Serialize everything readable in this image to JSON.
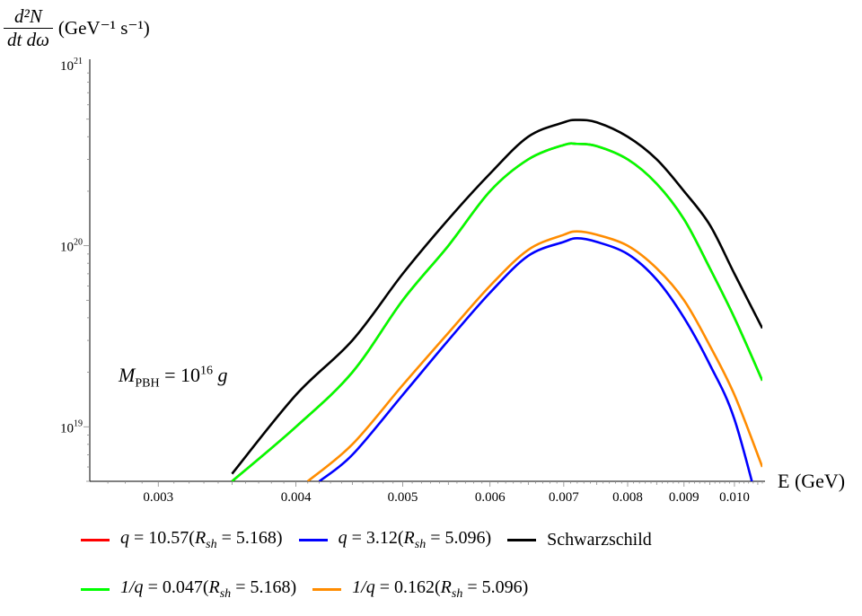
{
  "chart_data": {
    "type": "line",
    "title": "",
    "ylabel": "d²N/dt dω (GeV⁻¹ s⁻¹)",
    "ylabel_numerator": "d²N",
    "ylabel_denominator": "dt dω",
    "ylabel_units": "(GeV⁻¹ s⁻¹)",
    "xlabel": "E (GeV)",
    "xscale": "log",
    "yscale": "log",
    "xlim": [
      0.0026,
      0.0106
    ],
    "ylim": [
      5e+18,
      1e+21
    ],
    "xticks": [
      {
        "value": 0.003,
        "label": "0.003"
      },
      {
        "value": 0.004,
        "label": "0.004"
      },
      {
        "value": 0.005,
        "label": "0.005"
      },
      {
        "value": 0.006,
        "label": "0.006"
      },
      {
        "value": 0.007,
        "label": "0.007"
      },
      {
        "value": 0.008,
        "label": "0.008"
      },
      {
        "value": 0.009,
        "label": "0.009"
      },
      {
        "value": 0.01,
        "label": "0.010"
      }
    ],
    "yticks": [
      {
        "value": 1e+19,
        "label": "10",
        "exp": "19"
      },
      {
        "value": 1e+20,
        "label": "10",
        "exp": "20"
      },
      {
        "value": 1e+21,
        "label": "10",
        "exp": "21"
      }
    ],
    "annotation": "M_PBH = 10¹⁶ g",
    "annotation_main": "M",
    "annotation_sub": "PBH",
    "annotation_rest": " = 10",
    "annotation_exp": "16",
    "annotation_unit": " g",
    "series": [
      {
        "name": "q = 10.57(R_sh = 5.168)",
        "color": "#ff0000",
        "x": [
          0.0035,
          0.004,
          0.0045,
          0.005,
          0.0055,
          0.006,
          0.0065,
          0.007,
          0.0072,
          0.0075,
          0.008,
          0.0085,
          0.009,
          0.0095,
          0.01,
          0.0106
        ],
        "y": [
          5e+18,
          1e+19,
          2e+19,
          5e+19,
          1e+20,
          2e+20,
          3e+20,
          3.6e+20,
          3.65e+20,
          3.55e+20,
          3e+20,
          2.2e+20,
          1.4e+20,
          7.5e+19,
          4e+19,
          1.8e+19
        ]
      },
      {
        "name": "q = 3.12(R_sh = 5.096)",
        "color": "#0000ff",
        "x": [
          0.0042,
          0.0045,
          0.005,
          0.0055,
          0.006,
          0.0065,
          0.007,
          0.0072,
          0.0075,
          0.008,
          0.0085,
          0.009,
          0.0095,
          0.01,
          0.0106
        ],
        "y": [
          5e+18,
          7e+18,
          1.5e+19,
          3e+19,
          5.5e+19,
          8.8e+19,
          1.05e+20,
          1.1e+20,
          1.05e+20,
          9e+19,
          6.5e+19,
          4e+19,
          2.2e+19,
          1.1e+19,
          3e+18
        ]
      },
      {
        "name": "Schwarzschild",
        "color": "#000000",
        "x": [
          0.0035,
          0.004,
          0.0045,
          0.005,
          0.0055,
          0.006,
          0.0065,
          0.007,
          0.0072,
          0.0075,
          0.008,
          0.0085,
          0.009,
          0.0095,
          0.01,
          0.0106
        ],
        "y": [
          5.5e+18,
          1.5e+19,
          3e+19,
          7e+19,
          1.4e+20,
          2.5e+20,
          4e+20,
          4.8e+20,
          4.95e+20,
          4.8e+20,
          4e+20,
          3e+20,
          2e+20,
          1.3e+20,
          7e+19,
          3.5e+19
        ]
      },
      {
        "name": "1/q = 0.047(R_sh = 5.168)",
        "color": "#00ff00",
        "x": [
          0.0035,
          0.004,
          0.0045,
          0.005,
          0.0055,
          0.006,
          0.0065,
          0.007,
          0.0072,
          0.0075,
          0.008,
          0.0085,
          0.009,
          0.0095,
          0.01,
          0.0106
        ],
        "y": [
          5e+18,
          1e+19,
          2e+19,
          5e+19,
          1e+20,
          2e+20,
          3e+20,
          3.6e+20,
          3.65e+20,
          3.55e+20,
          3e+20,
          2.2e+20,
          1.4e+20,
          7.5e+19,
          4e+19,
          1.8e+19
        ]
      },
      {
        "name": "1/q = 0.162(R_sh = 5.096)",
        "color": "#ff8c00",
        "x": [
          0.0041,
          0.0045,
          0.005,
          0.0055,
          0.006,
          0.0065,
          0.007,
          0.0072,
          0.0075,
          0.008,
          0.0085,
          0.009,
          0.0095,
          0.01,
          0.0106
        ],
        "y": [
          5e+18,
          8e+18,
          1.7e+19,
          3.3e+19,
          6e+19,
          9.5e+19,
          1.15e+20,
          1.2e+20,
          1.15e+20,
          1e+20,
          7.5e+19,
          5e+19,
          2.8e+19,
          1.5e+19,
          6e+18
        ]
      }
    ],
    "legend": {
      "placement": "bottom",
      "rows": [
        [
          {
            "series": 0,
            "pre": "q",
            "mid": " = 10.57(R",
            "sub": "sh",
            "post": " = 5.168)"
          },
          {
            "series": 1,
            "pre": "q",
            "mid": " = 3.12(R",
            "sub": "sh",
            "post": " = 5.096)"
          },
          {
            "series": 2,
            "pre": "",
            "mid": "Schwarzschild",
            "sub": "",
            "post": ""
          }
        ],
        [
          {
            "series": 3,
            "pre": "1/q",
            "mid": " = 0.047(R",
            "sub": "sh",
            "post": " = 5.168)"
          },
          {
            "series": 4,
            "pre": "1/q",
            "mid": " = 0.162(R",
            "sub": "sh",
            "post": " = 5.096)"
          }
        ]
      ]
    },
    "grid": false
  }
}
